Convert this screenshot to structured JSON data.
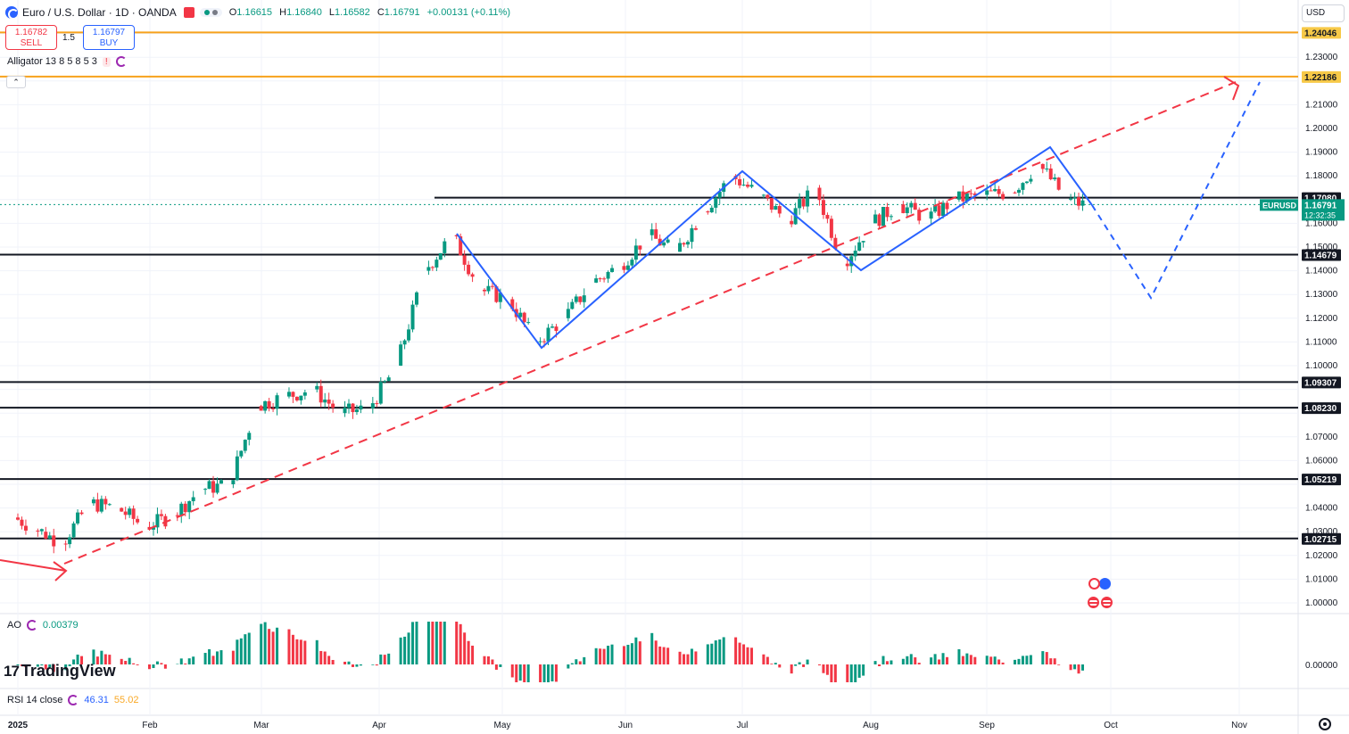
{
  "header": {
    "symbol_title": "Euro / U.S. Dollar · 1D · OANDA",
    "ohlc": {
      "open_label": "O",
      "open": "1.16615",
      "high_label": "H",
      "high": "1.16840",
      "low_label": "L",
      "low": "1.16582",
      "close_label": "C",
      "close": "1.16791",
      "change": "+0.00131 (+0.11%)"
    }
  },
  "trade": {
    "sell_price": "1.16782",
    "sell_label": "SELL",
    "spread": "1.5",
    "buy_price": "1.16797",
    "buy_label": "BUY"
  },
  "indicators": {
    "alligator_label": "Alligator 13 8 5 8 5 3",
    "ao_label": "AO",
    "ao_value": "0.00379",
    "rsi_label": "RSI 14 close",
    "rsi_value": "46.31",
    "rsi_ma_value": "55.02",
    "ao_zero": "0.00000"
  },
  "price_scale": {
    "currency": "USD",
    "ticks": [
      "1.23000",
      "1.21000",
      "1.20000",
      "1.19000",
      "1.18000",
      "1.16000",
      "1.15000",
      "1.14000",
      "1.13000",
      "1.12000",
      "1.11000",
      "1.10000",
      "1.07000",
      "1.06000",
      "1.04000",
      "1.03000",
      "1.02000",
      "1.01000",
      "1.00000"
    ],
    "levels": [
      {
        "value": "1.24046",
        "color": "#f7a21b"
      },
      {
        "value": "1.22186",
        "color": "#f7a21b"
      },
      {
        "value": "1.17080",
        "color": "#131722"
      },
      {
        "value": "1.14679",
        "color": "#131722"
      },
      {
        "value": "1.09307",
        "color": "#131722"
      },
      {
        "value": "1.08230",
        "color": "#131722"
      },
      {
        "value": "1.05219",
        "color": "#131722"
      },
      {
        "value": "1.02715",
        "color": "#131722"
      }
    ],
    "current": {
      "symbol": "EURUSD",
      "price": "1.16791",
      "countdown": "12:32:35",
      "color": "#089981"
    }
  },
  "time_axis": {
    "labels": [
      "2025",
      "Feb",
      "Mar",
      "Apr",
      "May",
      "Jun",
      "Jul",
      "Aug",
      "Sep",
      "Oct",
      "Nov"
    ]
  },
  "colors": {
    "up": "#089981",
    "down": "#f23645",
    "pattern": "#2962ff",
    "trend": "#f23645",
    "level_orange": "#f7a21b"
  },
  "icons": {
    "settings": "gear-icon",
    "logo": "tradingview-logo"
  },
  "chart_data": {
    "type": "candlestick",
    "title": "Euro / U.S. Dollar · 1D · OANDA",
    "ylim": [
      0.995,
      1.25
    ],
    "x_range": [
      "2024-12-31",
      "2025-11-10"
    ],
    "closes": [
      {
        "date": "2025-01-01",
        "close": 1.036
      },
      {
        "date": "2025-01-08",
        "close": 1.03
      },
      {
        "date": "2025-01-13",
        "close": 1.025
      },
      {
        "date": "2025-01-20",
        "close": 1.042
      },
      {
        "date": "2025-01-27",
        "close": 1.04
      },
      {
        "date": "2025-02-03",
        "close": 1.032
      },
      {
        "date": "2025-02-10",
        "close": 1.037
      },
      {
        "date": "2025-02-17",
        "close": 1.048
      },
      {
        "date": "2025-02-24",
        "close": 1.05
      },
      {
        "date": "2025-03-03",
        "close": 1.083
      },
      {
        "date": "2025-03-10",
        "close": 1.087
      },
      {
        "date": "2025-03-17",
        "close": 1.09
      },
      {
        "date": "2025-03-24",
        "close": 1.08
      },
      {
        "date": "2025-03-31",
        "close": 1.082
      },
      {
        "date": "2025-04-07",
        "close": 1.1
      },
      {
        "date": "2025-04-14",
        "close": 1.14
      },
      {
        "date": "2025-04-21",
        "close": 1.155
      },
      {
        "date": "2025-04-28",
        "close": 1.132
      },
      {
        "date": "2025-05-05",
        "close": 1.128
      },
      {
        "date": "2025-05-12",
        "close": 1.11
      },
      {
        "date": "2025-05-19",
        "close": 1.12
      },
      {
        "date": "2025-05-26",
        "close": 1.135
      },
      {
        "date": "2025-06-02",
        "close": 1.142
      },
      {
        "date": "2025-06-09",
        "close": 1.155
      },
      {
        "date": "2025-06-16",
        "close": 1.148
      },
      {
        "date": "2025-06-23",
        "close": 1.165
      },
      {
        "date": "2025-06-30",
        "close": 1.18
      },
      {
        "date": "2025-07-07",
        "close": 1.172
      },
      {
        "date": "2025-07-14",
        "close": 1.161
      },
      {
        "date": "2025-07-21",
        "close": 1.175
      },
      {
        "date": "2025-07-28",
        "close": 1.143
      },
      {
        "date": "2025-08-04",
        "close": 1.16
      },
      {
        "date": "2025-08-11",
        "close": 1.168
      },
      {
        "date": "2025-08-18",
        "close": 1.162
      },
      {
        "date": "2025-08-25",
        "close": 1.17
      },
      {
        "date": "2025-09-01",
        "close": 1.172
      },
      {
        "date": "2025-09-08",
        "close": 1.173
      },
      {
        "date": "2025-09-15",
        "close": 1.185
      },
      {
        "date": "2025-09-22",
        "close": 1.17
      },
      {
        "date": "2025-09-26",
        "close": 1.1679
      }
    ],
    "support_resistance": [
      1.24046,
      1.22186,
      1.1708,
      1.14679,
      1.09307,
      1.0823,
      1.05219,
      1.02715
    ]
  }
}
